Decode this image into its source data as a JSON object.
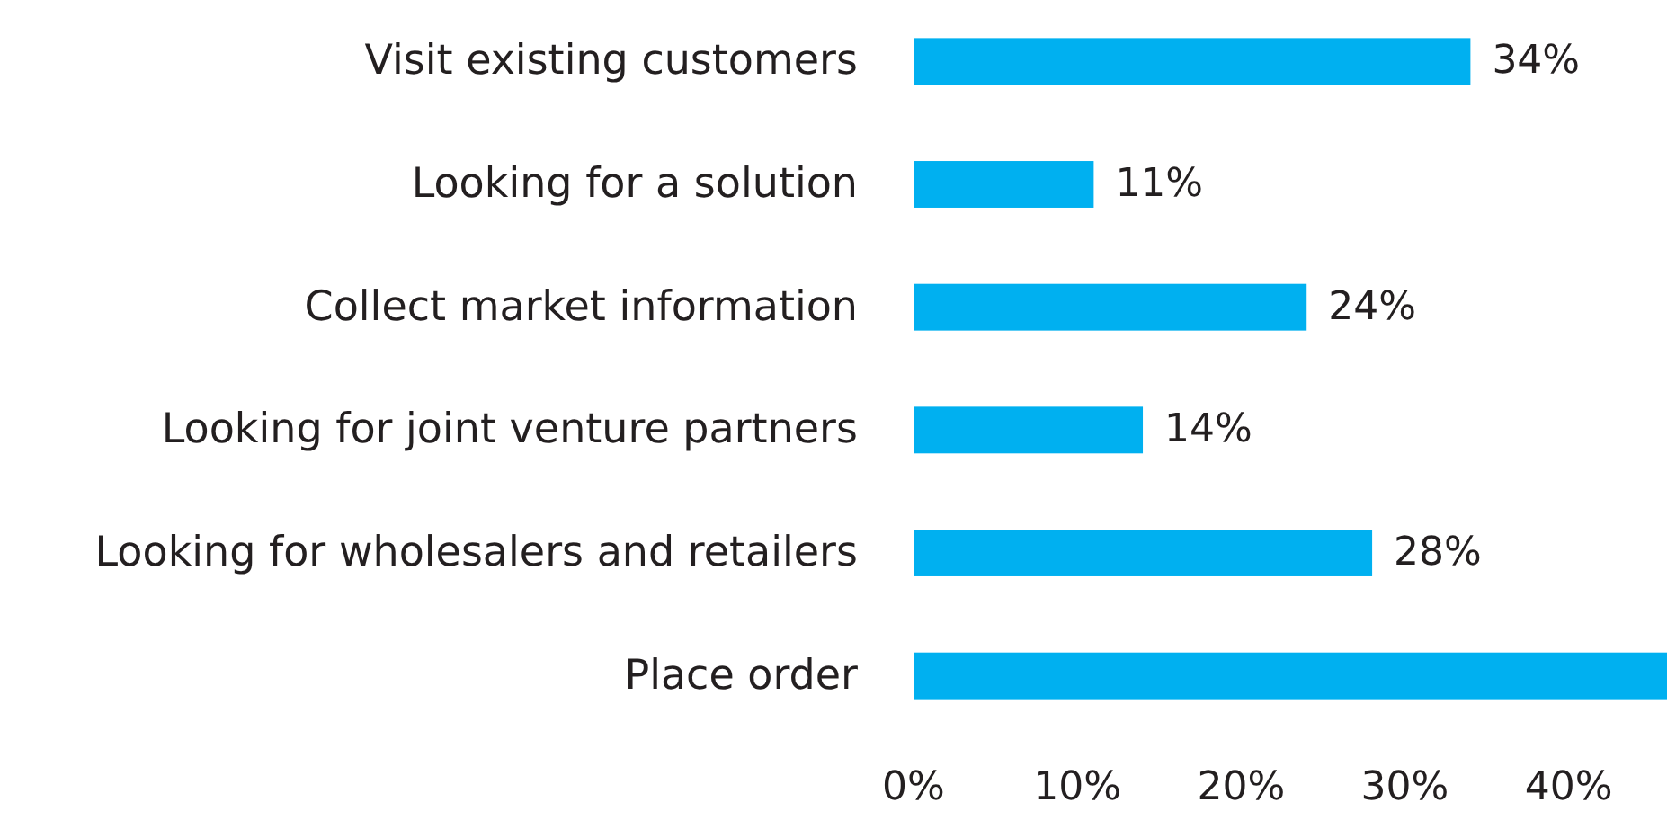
{
  "chart_data": {
    "type": "bar",
    "orientation": "horizontal",
    "categories": [
      "Visit existing customers",
      "Looking for a solution",
      "Collect market information",
      "Looking for joint venture partners",
      "Looking for wholesalers and retailers",
      "Place order"
    ],
    "values": [
      34,
      11,
      24,
      14,
      28,
      46
    ],
    "value_labels": [
      "34%",
      "11%",
      "24%",
      "14%",
      "28%",
      null
    ],
    "color": "#00b0f0",
    "xlim": [
      0,
      46
    ],
    "xticks": [
      {
        "value": 0,
        "label": "0%"
      },
      {
        "value": 10,
        "label": "10%"
      },
      {
        "value": 20,
        "label": "20%"
      },
      {
        "value": 30,
        "label": "30%"
      },
      {
        "value": 40,
        "label": "40%"
      }
    ],
    "grid": false
  }
}
